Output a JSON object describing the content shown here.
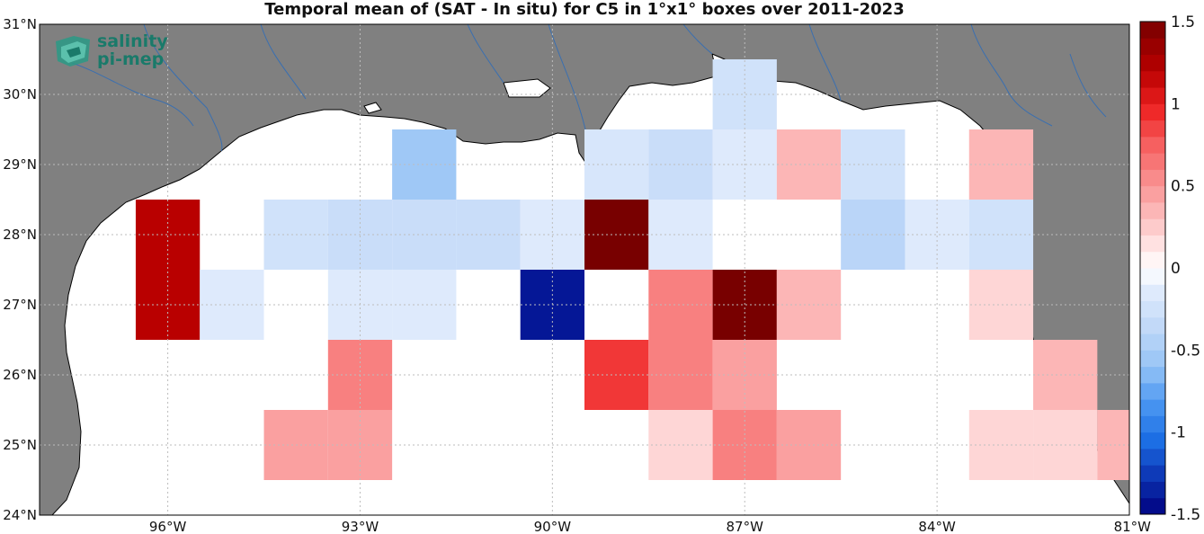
{
  "title": "Temporal mean of (SAT - In situ) for C5 in 1°x1° boxes over 2011-2023",
  "logo": {
    "line1": "salinity",
    "line2": "pi-mep"
  },
  "axes": {
    "lat_labels": [
      {
        "lat": 31,
        "text": "31°N"
      },
      {
        "lat": 30,
        "text": "30°N"
      },
      {
        "lat": 29,
        "text": "29°N"
      },
      {
        "lat": 28,
        "text": "28°N"
      },
      {
        "lat": 27,
        "text": "27°N"
      },
      {
        "lat": 26,
        "text": "26°N"
      },
      {
        "lat": 25,
        "text": "25°N"
      },
      {
        "lat": 24,
        "text": "24°N"
      }
    ],
    "lon_labels": [
      {
        "lon": -96,
        "text": "96°W"
      },
      {
        "lon": -93,
        "text": "93°W"
      },
      {
        "lon": -90,
        "text": "90°W"
      },
      {
        "lon": -87,
        "text": "87°W"
      },
      {
        "lon": -84,
        "text": "84°W"
      },
      {
        "lon": -81,
        "text": "81°W"
      }
    ],
    "lon_range": [
      -98,
      -81
    ],
    "lat_range": [
      24,
      31
    ]
  },
  "colorbar": {
    "range": [
      -1.5,
      1.5
    ],
    "ticks": [
      {
        "value": 1.5,
        "text": "1.5"
      },
      {
        "value": 1,
        "text": "1"
      },
      {
        "value": 0.5,
        "text": "0.5"
      },
      {
        "value": 0,
        "text": "0"
      },
      {
        "value": -0.5,
        "text": "-0.5"
      },
      {
        "value": -1,
        "text": "-1"
      },
      {
        "value": -1.5,
        "text": "-1.5"
      }
    ]
  },
  "colors": {
    "land": "#808080",
    "ocean": "#ffffff",
    "river": "#3a6fb0",
    "grid": "#bdbdbd"
  },
  "chart_data": {
    "type": "heatmap",
    "title": "Temporal mean of (SAT - In situ) for C5 in 1°x1° boxes over 2011-2023",
    "cell_size_deg": 1,
    "grid": "dotted",
    "note_units": "box centers given as lon (°E) / lat (°N)",
    "cells": [
      {
        "lon": -87,
        "lat": 30,
        "value": -0.25
      },
      {
        "lon": -92,
        "lat": 29,
        "value": -0.55
      },
      {
        "lon": -89,
        "lat": 29,
        "value": -0.2
      },
      {
        "lon": -88,
        "lat": 29,
        "value": -0.3
      },
      {
        "lon": -87,
        "lat": 29,
        "value": -0.15
      },
      {
        "lon": -86,
        "lat": 29,
        "value": 0.35
      },
      {
        "lon": -85,
        "lat": 29,
        "value": -0.25
      },
      {
        "lon": -83,
        "lat": 29,
        "value": 0.35
      },
      {
        "lon": -96,
        "lat": 28,
        "value": 1.2
      },
      {
        "lon": -94,
        "lat": 28,
        "value": -0.25
      },
      {
        "lon": -93,
        "lat": 28,
        "value": -0.3
      },
      {
        "lon": -92,
        "lat": 28,
        "value": -0.3
      },
      {
        "lon": -91,
        "lat": 28,
        "value": -0.3
      },
      {
        "lon": -90,
        "lat": 28,
        "value": -0.15
      },
      {
        "lon": -89,
        "lat": 28,
        "value": 1.5
      },
      {
        "lon": -88,
        "lat": 28,
        "value": -0.15
      },
      {
        "lon": -85,
        "lat": 28,
        "value": -0.4
      },
      {
        "lon": -84,
        "lat": 28,
        "value": -0.15
      },
      {
        "lon": -83,
        "lat": 28,
        "value": -0.25
      },
      {
        "lon": -96,
        "lat": 27,
        "value": 1.2
      },
      {
        "lon": -95,
        "lat": 27,
        "value": -0.15
      },
      {
        "lon": -93,
        "lat": 27,
        "value": -0.15
      },
      {
        "lon": -92,
        "lat": 27,
        "value": -0.15
      },
      {
        "lon": -90,
        "lat": 27,
        "value": -1.4
      },
      {
        "lon": -88,
        "lat": 27,
        "value": 0.6
      },
      {
        "lon": -87,
        "lat": 27,
        "value": 1.5
      },
      {
        "lon": -86,
        "lat": 27,
        "value": 0.35
      },
      {
        "lon": -83,
        "lat": 27,
        "value": 0.2
      },
      {
        "lon": -93,
        "lat": 26,
        "value": 0.6
      },
      {
        "lon": -89,
        "lat": 26,
        "value": 0.9
      },
      {
        "lon": -88,
        "lat": 26,
        "value": 0.6
      },
      {
        "lon": -87,
        "lat": 26,
        "value": 0.45
      },
      {
        "lon": -82,
        "lat": 26,
        "value": 0.35
      },
      {
        "lon": -94,
        "lat": 25,
        "value": 0.45
      },
      {
        "lon": -93,
        "lat": 25,
        "value": 0.45
      },
      {
        "lon": -88,
        "lat": 25,
        "value": 0.2
      },
      {
        "lon": -87,
        "lat": 25,
        "value": 0.6
      },
      {
        "lon": -86,
        "lat": 25,
        "value": 0.45
      },
      {
        "lon": -83,
        "lat": 25,
        "value": 0.2
      },
      {
        "lon": -82,
        "lat": 25,
        "value": 0.2
      },
      {
        "lon": -81,
        "lat": 25,
        "value": 0.35
      }
    ]
  }
}
